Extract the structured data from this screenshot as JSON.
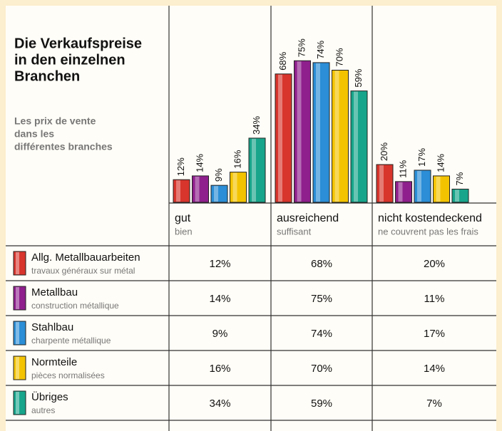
{
  "chart_data": {
    "type": "bar",
    "title": [
      "Die Verkaufspreise",
      "in den einzelnen",
      "Branchen"
    ],
    "subtitle": [
      "Les prix de vente",
      "dans les",
      "différentes branches"
    ],
    "categories": [
      "gut",
      "ausreichend",
      "nicht kostendeckend"
    ],
    "categories_fr": [
      "bien",
      "suffisant",
      "ne couvrent pas les frais"
    ],
    "ylim": [
      0,
      100
    ],
    "series": [
      {
        "name": "Allg. Metallbauarbeiten",
        "name_fr": "travaux généraux sur métal",
        "color": "#d8352c",
        "values": [
          12,
          68,
          20
        ],
        "value_labels": [
          "12%",
          "68%",
          "20%"
        ]
      },
      {
        "name": "Metallbau",
        "name_fr": "construction métallique",
        "color": "#8e1f8c",
        "values": [
          14,
          75,
          11
        ],
        "value_labels": [
          "14%",
          "75%",
          "11%"
        ]
      },
      {
        "name": "Stahlbau",
        "name_fr": "charpente métallique",
        "color": "#2b8ed6",
        "values": [
          9,
          74,
          17
        ],
        "value_labels": [
          "9%",
          "74%",
          "17%"
        ]
      },
      {
        "name": "Normteile",
        "name_fr": "pièces normalisées",
        "color": "#f4c300",
        "values": [
          16,
          70,
          14
        ],
        "value_labels": [
          "16%",
          "70%",
          "14%"
        ]
      },
      {
        "name": "Übriges",
        "name_fr": "autres",
        "color": "#17a58b",
        "values": [
          34,
          59,
          7
        ],
        "value_labels": [
          "34%",
          "59%",
          "7%"
        ]
      }
    ]
  }
}
